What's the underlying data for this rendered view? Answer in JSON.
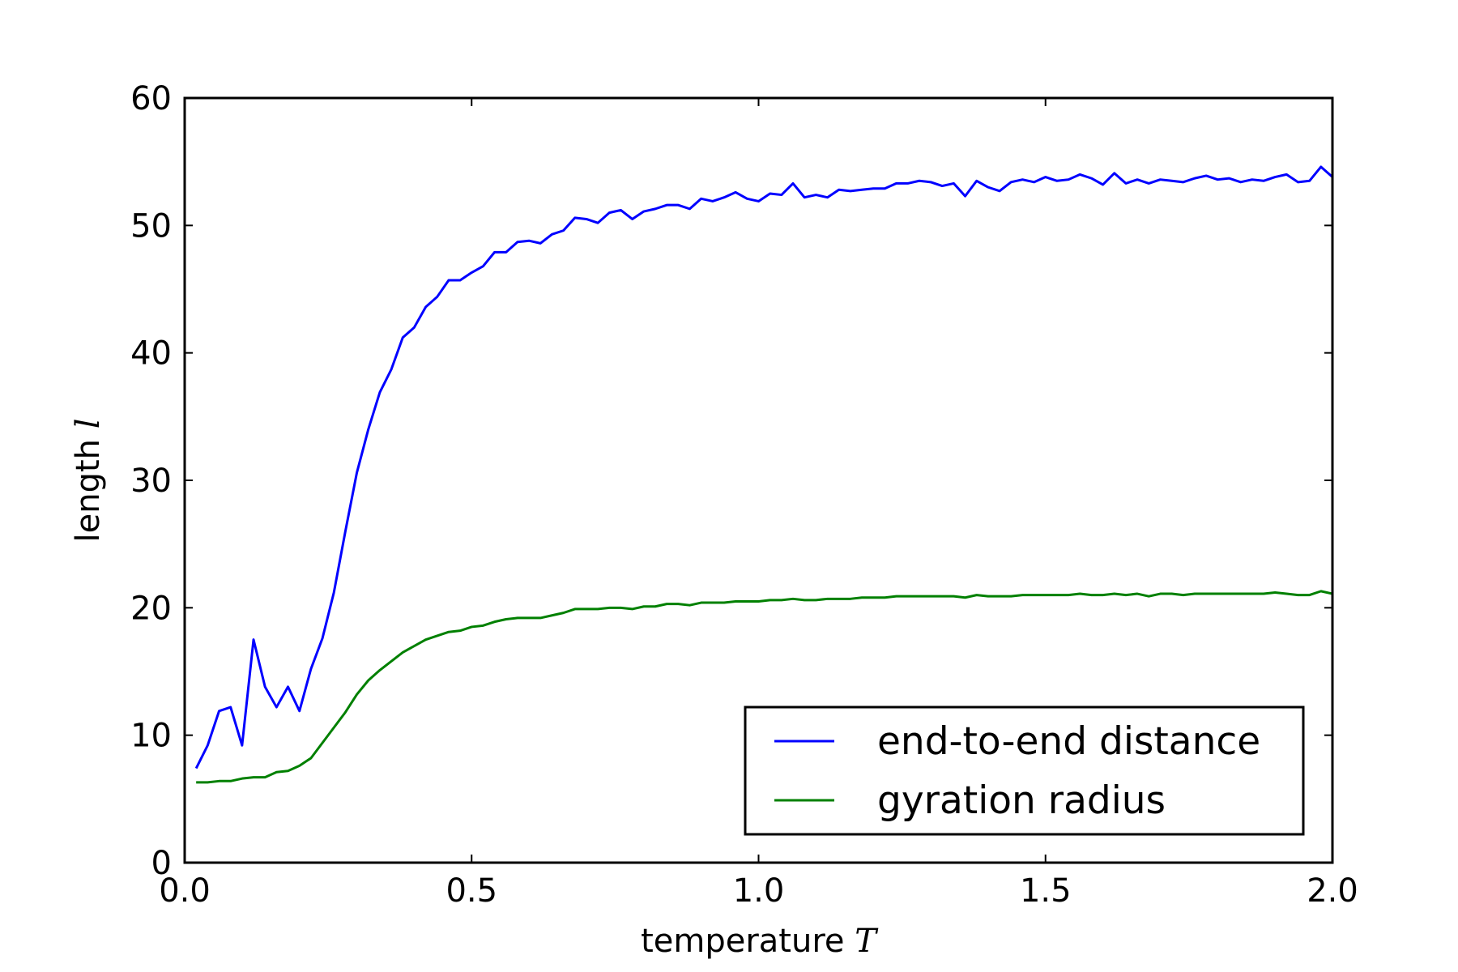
{
  "chart_data": {
    "type": "line",
    "xlabel": "temperature",
    "xlabel_var": "T",
    "ylabel": "length",
    "ylabel_var": "l",
    "xlim": [
      0.0,
      2.0
    ],
    "ylim": [
      0,
      60
    ],
    "x_ticks": [
      "0.0",
      "0.5",
      "1.0",
      "1.5",
      "2.0"
    ],
    "y_ticks": [
      "0",
      "10",
      "20",
      "30",
      "40",
      "50",
      "60"
    ],
    "grid": false,
    "legend": {
      "placement": "lower-right"
    },
    "x": [
      0.02,
      0.04,
      0.06,
      0.08,
      0.1,
      0.12,
      0.14,
      0.16,
      0.18,
      0.2,
      0.22,
      0.24,
      0.26,
      0.28,
      0.3,
      0.32,
      0.34,
      0.36,
      0.38,
      0.4,
      0.42,
      0.44,
      0.46,
      0.48,
      0.5,
      0.52,
      0.54,
      0.56,
      0.58,
      0.6,
      0.62,
      0.64,
      0.66,
      0.68,
      0.7,
      0.72,
      0.74,
      0.76,
      0.78,
      0.8,
      0.82,
      0.84,
      0.86,
      0.88,
      0.9,
      0.92,
      0.94,
      0.96,
      0.98,
      1.0,
      1.02,
      1.04,
      1.06,
      1.08,
      1.1,
      1.12,
      1.14,
      1.16,
      1.18,
      1.2,
      1.22,
      1.24,
      1.26,
      1.28,
      1.3,
      1.32,
      1.34,
      1.36,
      1.38,
      1.4,
      1.42,
      1.44,
      1.46,
      1.48,
      1.5,
      1.52,
      1.54,
      1.56,
      1.58,
      1.6,
      1.62,
      1.64,
      1.66,
      1.68,
      1.7,
      1.72,
      1.74,
      1.76,
      1.78,
      1.8,
      1.82,
      1.84,
      1.86,
      1.88,
      1.9,
      1.92,
      1.94,
      1.96,
      1.98,
      2.0
    ],
    "series": [
      {
        "name": "end-to-end distance",
        "color": "#0000ff",
        "values": [
          7.4,
          9.2,
          11.9,
          12.2,
          9.2,
          17.5,
          13.8,
          12.2,
          13.8,
          11.9,
          15.2,
          17.6,
          21.2,
          26.0,
          30.6,
          34.0,
          36.9,
          38.7,
          41.2,
          42.0,
          43.6,
          44.4,
          45.7,
          45.7,
          46.3,
          46.8,
          47.9,
          47.9,
          48.7,
          48.8,
          48.6,
          49.3,
          49.6,
          50.6,
          50.5,
          50.2,
          51.0,
          51.2,
          50.5,
          51.1,
          51.3,
          51.6,
          51.6,
          51.3,
          52.1,
          51.9,
          52.2,
          52.6,
          52.1,
          51.9,
          52.5,
          52.4,
          53.3,
          52.2,
          52.4,
          52.2,
          52.8,
          52.7,
          52.8,
          52.9,
          52.9,
          53.3,
          53.3,
          53.5,
          53.4,
          53.1,
          53.3,
          52.3,
          53.5,
          53.0,
          52.7,
          53.4,
          53.6,
          53.4,
          53.8,
          53.5,
          53.6,
          54.0,
          53.7,
          53.2,
          54.1,
          53.3,
          53.6,
          53.3,
          53.6,
          53.5,
          53.4,
          53.7,
          53.9,
          53.6,
          53.7,
          53.4,
          53.6,
          53.5,
          53.8,
          54.0,
          53.4,
          53.5,
          54.6,
          53.8
        ]
      },
      {
        "name": "gyration radius",
        "color": "#008000",
        "values": [
          6.3,
          6.3,
          6.4,
          6.4,
          6.6,
          6.7,
          6.7,
          7.1,
          7.2,
          7.6,
          8.2,
          9.4,
          10.6,
          11.8,
          13.2,
          14.3,
          15.1,
          15.8,
          16.5,
          17.0,
          17.5,
          17.8,
          18.1,
          18.2,
          18.5,
          18.6,
          18.9,
          19.1,
          19.2,
          19.2,
          19.2,
          19.4,
          19.6,
          19.9,
          19.9,
          19.9,
          20.0,
          20.0,
          19.9,
          20.1,
          20.1,
          20.3,
          20.3,
          20.2,
          20.4,
          20.4,
          20.4,
          20.5,
          20.5,
          20.5,
          20.6,
          20.6,
          20.7,
          20.6,
          20.6,
          20.7,
          20.7,
          20.7,
          20.8,
          20.8,
          20.8,
          20.9,
          20.9,
          20.9,
          20.9,
          20.9,
          20.9,
          20.8,
          21.0,
          20.9,
          20.9,
          20.9,
          21.0,
          21.0,
          21.0,
          21.0,
          21.0,
          21.1,
          21.0,
          21.0,
          21.1,
          21.0,
          21.1,
          20.9,
          21.1,
          21.1,
          21.0,
          21.1,
          21.1,
          21.1,
          21.1,
          21.1,
          21.1,
          21.1,
          21.2,
          21.1,
          21.0,
          21.0,
          21.3,
          21.1
        ]
      }
    ]
  }
}
